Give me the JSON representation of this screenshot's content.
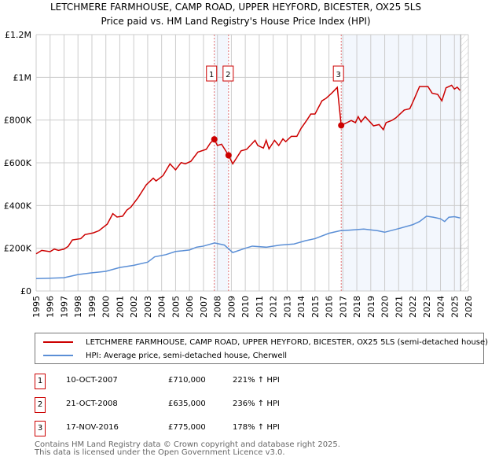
{
  "chart_data": {
    "type": "line",
    "title": "LETCHMERE FARMHOUSE, CAMP ROAD, UPPER HEYFORD, BICESTER, OX25 5LS",
    "subtitle": "Price paid vs. HM Land Registry's House Price Index (HPI)",
    "xlim": [
      1995,
      2026
    ],
    "ylim": [
      0,
      1200000
    ],
    "x_ticks": [
      "1995",
      "1996",
      "1997",
      "1998",
      "1999",
      "2000",
      "2001",
      "2002",
      "2003",
      "2004",
      "2005",
      "2006",
      "2007",
      "2008",
      "2009",
      "2010",
      "2011",
      "2012",
      "2013",
      "2014",
      "2015",
      "2016",
      "2017",
      "2018",
      "2019",
      "2020",
      "2021",
      "2022",
      "2023",
      "2024",
      "2025",
      "2026"
    ],
    "y_ticks": [
      {
        "v": 0,
        "label": "£0"
      },
      {
        "v": 200000,
        "label": "£200K"
      },
      {
        "v": 400000,
        "label": "£400K"
      },
      {
        "v": 600000,
        "label": "£600K"
      },
      {
        "v": 800000,
        "label": "£800K"
      },
      {
        "v": 1000000,
        "label": "£1M"
      },
      {
        "v": 1200000,
        "label": "£1.2M"
      }
    ],
    "shaded": [
      [
        2007.78,
        2008.8
      ],
      [
        2016.88,
        2025.45
      ]
    ],
    "hatched_from": 2025.45,
    "series": [
      {
        "name": "LETCHMERE FARMHOUSE, CAMP ROAD, UPPER HEYFORD, BICESTER, OX25 5LS (semi-detached house)",
        "color": "#cc0000",
        "x": [
          1995,
          1995.4,
          1996,
          1996.3,
          1996.6,
          1997,
          1997.3,
          1997.6,
          1998.2,
          1998.5,
          1999.1,
          1999.5,
          2000.1,
          2000.5,
          2000.8,
          2001.2,
          2001.5,
          2001.8,
          2002.3,
          2002.9,
          2003.4,
          2003.6,
          2004.1,
          2004.6,
          2005,
          2005.4,
          2005.7,
          2006.1,
          2006.6,
          2007.2,
          2007.5,
          2007.78,
          2008,
          2008.3,
          2008.8,
          2009.1,
          2009.7,
          2010.1,
          2010.7,
          2010.9,
          2011.3,
          2011.5,
          2011.7,
          2012.1,
          2012.4,
          2012.7,
          2012.9,
          2013.3,
          2013.7,
          2014,
          2014.4,
          2014.7,
          2015,
          2015.5,
          2015.8,
          2016.2,
          2016.6,
          2016.88,
          2017.2,
          2017.6,
          2017.9,
          2018.1,
          2018.3,
          2018.6,
          2019.2,
          2019.6,
          2019.9,
          2020.1,
          2020.5,
          2020.8,
          2021.4,
          2021.8,
          2022.1,
          2022.5,
          2023.1,
          2023.4,
          2023.8,
          2024.1,
          2024.4,
          2024.8,
          2025,
          2025.2,
          2025.4
        ],
        "y": [
          174000,
          190000,
          184000,
          196000,
          190000,
          196000,
          209000,
          239000,
          245000,
          264000,
          272000,
          282000,
          313000,
          362000,
          346000,
          350000,
          378000,
          393000,
          436000,
          497000,
          528000,
          515000,
          540000,
          595000,
          567000,
          601000,
          595000,
          607000,
          650000,
          663000,
          693000,
          710000,
          681000,
          687000,
          635000,
          595000,
          656000,
          663000,
          705000,
          681000,
          669000,
          705000,
          665000,
          705000,
          681000,
          712000,
          699000,
          724000,
          724000,
          761000,
          798000,
          828000,
          828000,
          890000,
          902000,
          926000,
          953000,
          775000,
          785000,
          798000,
          788000,
          816000,
          791000,
          816000,
          773000,
          779000,
          755000,
          788000,
          798000,
          810000,
          847000,
          853000,
          896000,
          957000,
          957000,
          926000,
          920000,
          890000,
          951000,
          963000,
          945000,
          954000,
          939000
        ]
      },
      {
        "name": "HPI: Average price, semi-detached house, Cherwell",
        "color": "#5b8fd6",
        "x": [
          1995,
          1996,
          1997,
          1998,
          1999,
          2000,
          2001,
          2002,
          2003,
          2003.5,
          2004.3,
          2005,
          2005.5,
          2006,
          2006.5,
          2007,
          2007.8,
          2008.5,
          2009.1,
          2010,
          2010.5,
          2011.5,
          2012.5,
          2013.5,
          2014.3,
          2015,
          2016,
          2016.8,
          2017.5,
          2018.5,
          2019.5,
          2020,
          2021,
          2022,
          2022.5,
          2023,
          2023.5,
          2024,
          2024.3,
          2024.6,
          2025,
          2025.4
        ],
        "y": [
          58000,
          60000,
          62000,
          77000,
          85000,
          92000,
          110000,
          120000,
          135000,
          160000,
          170000,
          185000,
          188000,
          192000,
          205000,
          210000,
          225000,
          215000,
          180000,
          200000,
          210000,
          205000,
          215000,
          220000,
          235000,
          245000,
          270000,
          282000,
          285000,
          290000,
          282000,
          275000,
          292000,
          310000,
          325000,
          350000,
          345000,
          338000,
          325000,
          345000,
          348000,
          342000
        ]
      }
    ],
    "sales": [
      {
        "n": "1",
        "date": "10-OCT-2007",
        "x": 2007.78,
        "price": "£710,000",
        "value": 710000,
        "hpi": "221% ↑ HPI"
      },
      {
        "n": "2",
        "date": "21-OCT-2008",
        "x": 2008.8,
        "price": "£635,000",
        "value": 635000,
        "hpi": "236% ↑ HPI"
      },
      {
        "n": "3",
        "date": "17-NOV-2016",
        "x": 2016.88,
        "price": "£775,000",
        "value": 775000,
        "hpi": "178% ↑ HPI"
      }
    ]
  },
  "legend": {
    "red_label": "LETCHMERE FARMHOUSE, CAMP ROAD, UPPER HEYFORD, BICESTER, OX25 5LS (semi-detached house)",
    "blue_label": "HPI: Average price, semi-detached house, Cherwell"
  },
  "footer": {
    "line1": "Contains HM Land Registry data © Crown copyright and database right 2025.",
    "line2": "This data is licensed under the Open Government Licence v3.0."
  }
}
